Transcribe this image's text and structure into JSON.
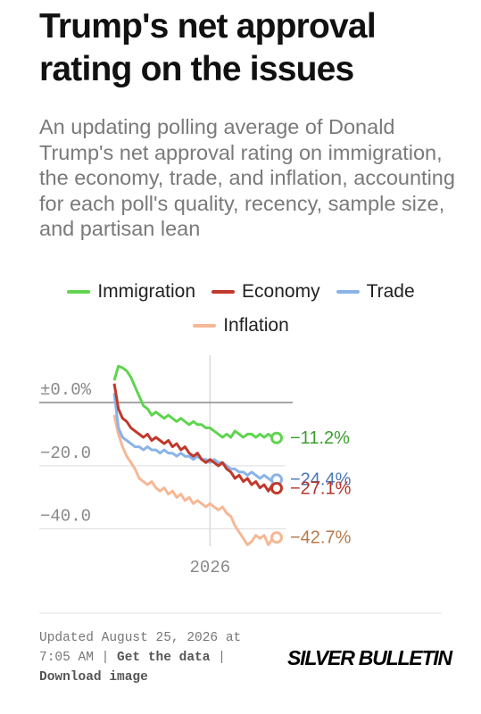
{
  "chart_data": {
    "type": "line",
    "title": "Trump's net approval rating on the issues",
    "subtitle": "An updating polling average of Donald Trump's net approval rating on immigration, the economy, trade, and inflation, accounting for each poll's quality, recency, sample size, and partisan lean",
    "categories": [
      null,
      null,
      null,
      null,
      null,
      null,
      null,
      null,
      null,
      null,
      null,
      null,
      null,
      null,
      null,
      null,
      null,
      null,
      null,
      null,
      null,
      null,
      null,
      "2026",
      null,
      null,
      null,
      null,
      null,
      null,
      null,
      null,
      null,
      null,
      null,
      null,
      null,
      null,
      null,
      null
    ],
    "ylim": [
      -48,
      13
    ],
    "yticks": [
      {
        "value": 0,
        "label": "±0.0%"
      },
      {
        "value": -20,
        "label": "−20.0"
      },
      {
        "value": -40,
        "label": "−40.0"
      }
    ],
    "grid": true,
    "series": [
      {
        "name": "Immigration",
        "color": "#5fd44f",
        "label_color": "#3a9e2c",
        "values": [
          7,
          11.5,
          11,
          10,
          8,
          5,
          2,
          -1,
          -2,
          -4,
          -3,
          -4,
          -5,
          -4,
          -5,
          -6,
          -5,
          -6,
          -7,
          -6,
          -7,
          -7,
          -8,
          -8,
          -9,
          -10,
          -11,
          -10,
          -11,
          -9,
          -10,
          -11,
          -10,
          -10,
          -11,
          -10,
          -11,
          -10,
          -11,
          -11.2
        ],
        "value_labels": [
          null,
          null,
          null,
          null,
          null,
          null,
          null,
          null,
          null,
          null,
          null,
          null,
          null,
          null,
          null,
          null,
          null,
          null,
          null,
          null,
          null,
          null,
          null,
          null,
          null,
          null,
          null,
          null,
          null,
          null,
          null,
          null,
          null,
          null,
          null,
          null,
          null,
          null,
          null,
          "−11.2%"
        ]
      },
      {
        "name": "Economy",
        "color": "#c0392b",
        "label_color": "#b8332a",
        "values": [
          6,
          -2,
          -5,
          -6,
          -8,
          -9,
          -10,
          -11,
          -10,
          -12,
          -11,
          -12,
          -13,
          -12,
          -14,
          -13,
          -15,
          -14,
          -16,
          -17,
          -16,
          -18,
          -19,
          -18,
          -19,
          -20,
          -19,
          -21,
          -22,
          -24,
          -23,
          -25,
          -24,
          -26,
          -25,
          -27,
          -26,
          -28,
          -26,
          -27.1
        ],
        "value_labels": [
          null,
          null,
          null,
          null,
          null,
          null,
          null,
          null,
          null,
          null,
          null,
          null,
          null,
          null,
          null,
          null,
          null,
          null,
          null,
          null,
          null,
          null,
          null,
          null,
          null,
          null,
          null,
          null,
          null,
          null,
          null,
          null,
          null,
          null,
          null,
          null,
          null,
          null,
          null,
          "−27.1%"
        ]
      },
      {
        "name": "Trade",
        "color": "#8ab4e8",
        "label_color": "#4a78b5",
        "values": [
          3,
          -8,
          -11,
          -12,
          -13,
          -14,
          -14,
          -15,
          -14,
          -15,
          -15,
          -16,
          -15,
          -16,
          -16,
          -17,
          -16,
          -17,
          -17,
          -18,
          -17,
          -18,
          -18,
          -19,
          -18,
          -19,
          -19,
          -20,
          -21,
          -21,
          -22,
          -22,
          -23,
          -22,
          -23,
          -24,
          -23,
          -24,
          -25,
          -24.4
        ],
        "value_labels": [
          null,
          null,
          null,
          null,
          null,
          null,
          null,
          null,
          null,
          null,
          null,
          null,
          null,
          null,
          null,
          null,
          null,
          null,
          null,
          null,
          null,
          null,
          null,
          null,
          null,
          null,
          null,
          null,
          null,
          null,
          null,
          null,
          null,
          null,
          null,
          null,
          null,
          null,
          null,
          "−24.4%"
        ]
      },
      {
        "name": "Inflation",
        "color": "#f5b895",
        "label_color": "#b87a4a",
        "values": [
          -4,
          -10,
          -14,
          -17,
          -19,
          -21,
          -24,
          -25,
          -26,
          -25,
          -27,
          -28,
          -27,
          -29,
          -28,
          -30,
          -29,
          -31,
          -30,
          -32,
          -31,
          -32,
          -33,
          -32,
          -33,
          -34,
          -33,
          -35,
          -36,
          -39,
          -41,
          -43,
          -45,
          -44,
          -42,
          -43,
          -42,
          -45,
          -43,
          -42.7
        ],
        "value_labels": [
          null,
          null,
          null,
          null,
          null,
          null,
          null,
          null,
          null,
          null,
          null,
          null,
          null,
          null,
          null,
          null,
          null,
          null,
          null,
          null,
          null,
          null,
          null,
          null,
          null,
          null,
          null,
          null,
          null,
          null,
          null,
          null,
          null,
          null,
          null,
          null,
          null,
          null,
          null,
          "−42.7%"
        ]
      }
    ],
    "footer": {
      "updated": "Updated August 25, 2026 at 7:05 AM",
      "separator": "|",
      "get_data": "Get the data",
      "download": "Download image",
      "brand": "SILVER BULLETIN"
    }
  }
}
